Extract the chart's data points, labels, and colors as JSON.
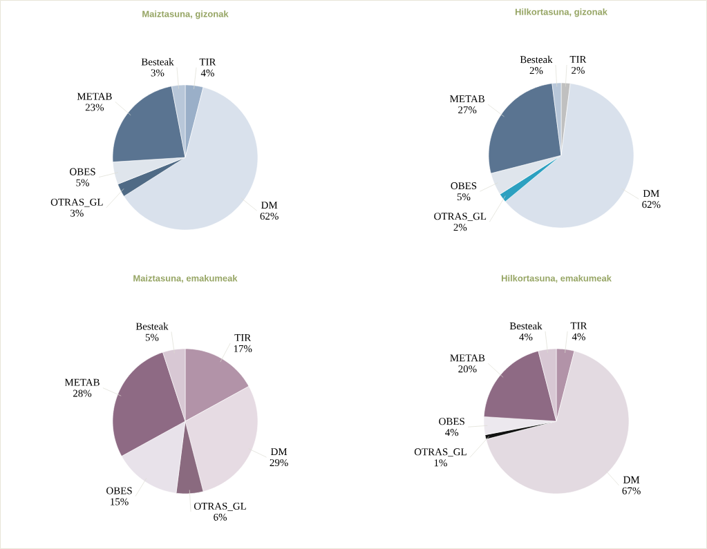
{
  "chart_data": [
    {
      "type": "pie",
      "title": "Maiztasuna, gizonak",
      "categories": [
        "TIR",
        "DM",
        "OTRAS_GL",
        "OBES",
        "METAB",
        "Besteak"
      ],
      "values": [
        4,
        62,
        3,
        5,
        23,
        3
      ],
      "value_labels": [
        "4%",
        "62%",
        "3%",
        "5%",
        "23%",
        "3%"
      ],
      "colors": [
        "#9aafc8",
        "#d9e1ec",
        "#4f6a85",
        "#dfe5ec",
        "#5a7491",
        "#b8c7d9"
      ]
    },
    {
      "type": "pie",
      "title": "Hilkortasuna, gizonak",
      "categories": [
        "TIR",
        "DM",
        "OTRAS_GL",
        "OBES",
        "METAB",
        "Besteak"
      ],
      "values": [
        2,
        62,
        2,
        5,
        27,
        2
      ],
      "value_labels": [
        "2%",
        "62%",
        "2%",
        "5%",
        "27%",
        "2%"
      ],
      "colors": [
        "#c0c0c0",
        "#d9e1ec",
        "#2ca0c0",
        "#dfe5ec",
        "#5a7491",
        "#b8c7d9"
      ]
    },
    {
      "type": "pie",
      "title": "Maiztasuna, emakumeak",
      "categories": [
        "TIR",
        "DM",
        "OTRAS_GL",
        "OBES",
        "METAB",
        "Besteak"
      ],
      "values": [
        17,
        29,
        6,
        15,
        28,
        5
      ],
      "value_labels": [
        "17%",
        "29%",
        "6%",
        "15%",
        "28%",
        "5%"
      ],
      "colors": [
        "#b293a8",
        "#e6dbe3",
        "#8a6a7f",
        "#e8e2ea",
        "#8e6a84",
        "#d8c8d4"
      ]
    },
    {
      "type": "pie",
      "title": "Hilkortasuna, emakumeak",
      "categories": [
        "TIR",
        "DM",
        "OTRAS_GL",
        "OBES",
        "METAB",
        "Besteak"
      ],
      "values": [
        4,
        67,
        1,
        4,
        20,
        4
      ],
      "value_labels": [
        "4%",
        "67%",
        "1%",
        "4%",
        "20%",
        "4%"
      ],
      "colors": [
        "#b293a8",
        "#e3dae1",
        "#111111",
        "#ece8ee",
        "#8e6a84",
        "#d8c8d4"
      ]
    }
  ]
}
